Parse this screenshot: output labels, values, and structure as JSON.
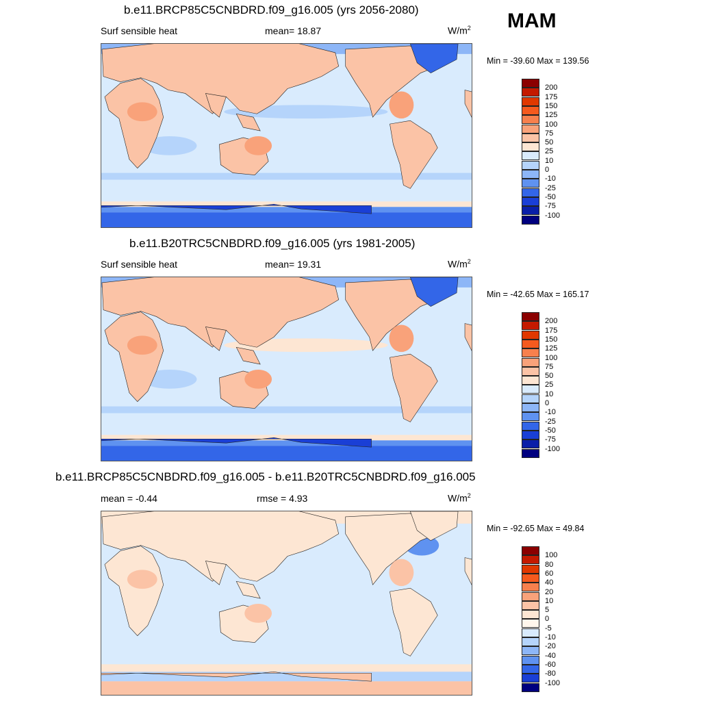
{
  "season": "MAM",
  "panels": [
    {
      "title": "b.e11.BRCP85C5CNBDRD.f09_g16.005 (yrs 2056-2080)",
      "left_label": "Surf sensible heat",
      "center_label": "mean=  18.87",
      "units": "W/m",
      "units_sup": "2",
      "minmax": "Min = -39.60 Max = 139.56",
      "type": "abs"
    },
    {
      "title": "b.e11.B20TRC5CNBDRD.f09_g16.005 (yrs 1981-2005)",
      "left_label": "Surf sensible heat",
      "center_label": "mean=  19.31",
      "units": "W/m",
      "units_sup": "2",
      "minmax": "Min = -42.65 Max = 165.17",
      "type": "abs"
    },
    {
      "title": "b.e11.BRCP85C5CNBDRD.f09_g16.005 - b.e11.B20TRC5CNBDRD.f09_g16.005",
      "left_label": "mean =  -0.44",
      "center_label": "rmse =   4.93",
      "units": "W/m",
      "units_sup": "2",
      "minmax": "Min = -92.65 Max =  49.84",
      "type": "diff"
    }
  ],
  "colorbars": {
    "abs": {
      "labels": [
        "200",
        "175",
        "150",
        "125",
        "100",
        "75",
        "50",
        "25",
        "10",
        "0",
        "-10",
        "-25",
        "-50",
        "-75",
        "-100"
      ],
      "colors": [
        "#8b0000",
        "#c41a00",
        "#e03800",
        "#f55a1e",
        "#f7804d",
        "#f9a27a",
        "#fbc3a6",
        "#fde6d3",
        "#d9ebfd",
        "#b5d4fb",
        "#8db6f7",
        "#5f92f0",
        "#3366e8",
        "#1a3fd6",
        "#0a1fa8",
        "#00007f"
      ]
    },
    "diff": {
      "labels": [
        "100",
        "80",
        "60",
        "40",
        "20",
        "10",
        "5",
        "0",
        "-5",
        "-10",
        "-20",
        "-40",
        "-60",
        "-80",
        "-100"
      ],
      "colors": [
        "#8b0000",
        "#c41a00",
        "#e03800",
        "#f55a1e",
        "#f7804d",
        "#f9a27a",
        "#fbc3a6",
        "#fde6d3",
        "#fff6ec",
        "#d9ebfd",
        "#b5d4fb",
        "#8db6f7",
        "#5f92f0",
        "#3366e8",
        "#1a3fd6",
        "#00007f"
      ]
    }
  }
}
